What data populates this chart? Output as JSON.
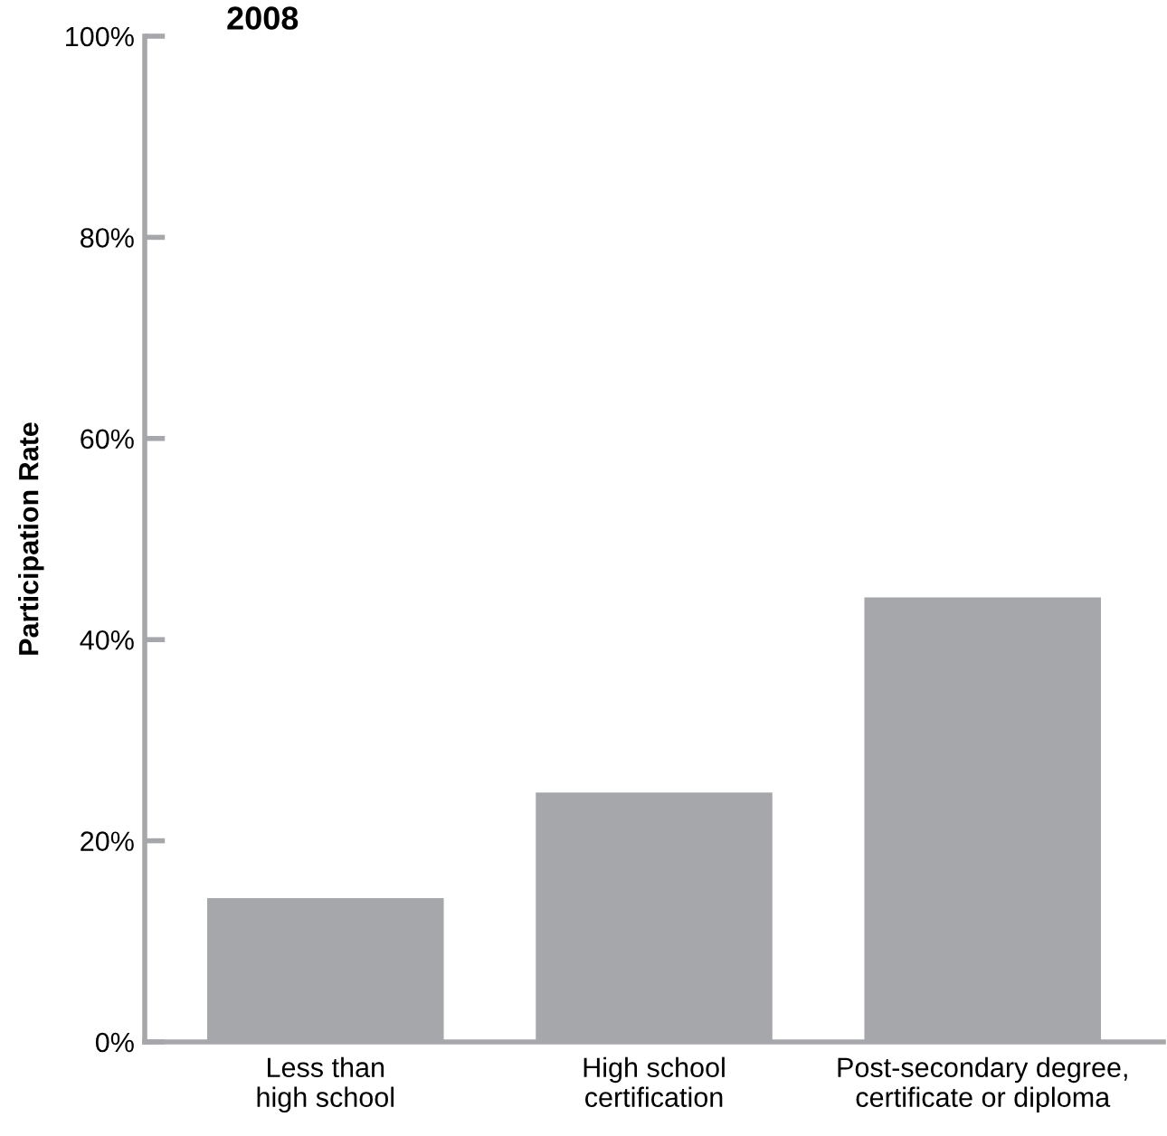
{
  "chart_data": {
    "type": "bar",
    "title": "2008",
    "ylabel": "Participation Rate",
    "categories": [
      "Less than\nhigh school",
      "High school\ncertification",
      "Post-secondary degree,\ncertificate or diploma"
    ],
    "values": [
      14.3,
      24.8,
      44.2
    ],
    "color": "#a6a7aa",
    "ylim": [
      0,
      100
    ],
    "yticks": [
      {
        "value": 0,
        "label": "0%"
      },
      {
        "value": 20,
        "label": "20%"
      },
      {
        "value": 40,
        "label": "40%"
      },
      {
        "value": 60,
        "label": "60%"
      },
      {
        "value": 80,
        "label": "80%"
      },
      {
        "value": 100,
        "label": "100%"
      }
    ],
    "grid": false,
    "legend": false
  }
}
